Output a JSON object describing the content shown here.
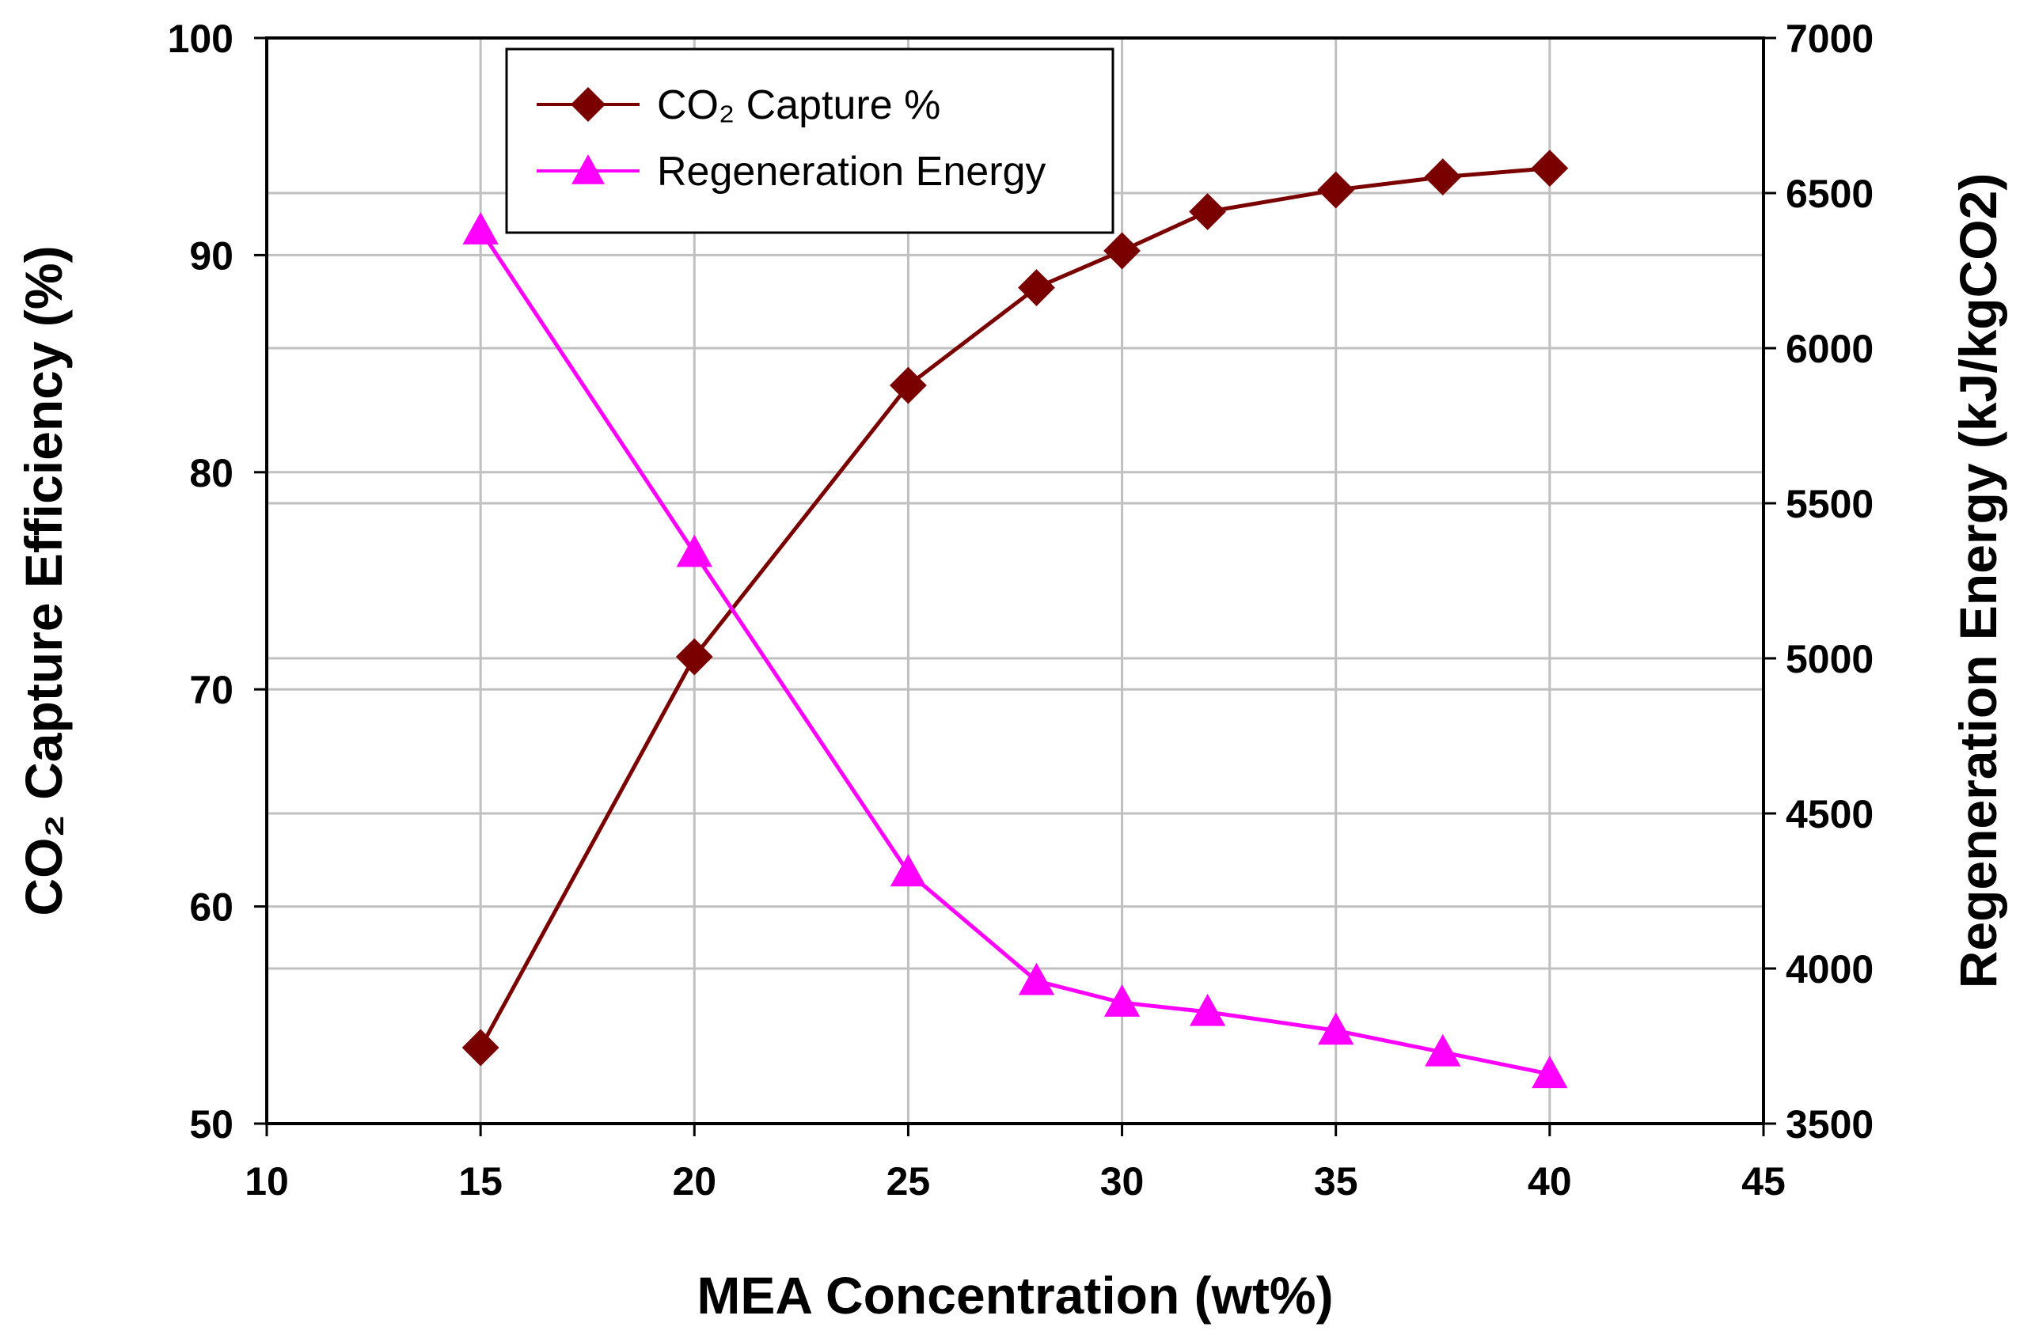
{
  "chart_data": {
    "type": "line",
    "title": "",
    "xlabel": "MEA Concentration (wt%)",
    "ylabel_left": "CO₂ Capture Efficiency (%)",
    "ylabel_right": "Regeneration Energy (kJ/kgCO2)",
    "xlim": [
      10,
      45
    ],
    "ylim_left": [
      50,
      100
    ],
    "ylim_right": [
      3500,
      7000
    ],
    "xticks": [
      10,
      15,
      20,
      25,
      30,
      35,
      40,
      45
    ],
    "yticks_left": [
      50,
      60,
      70,
      80,
      90,
      100
    ],
    "yticks_right": [
      3500,
      4000,
      4500,
      5000,
      5500,
      6000,
      6500,
      7000
    ],
    "grid": true,
    "legend_position": "top-center",
    "series": [
      {
        "name": "CO₂ Capture %",
        "axis": "left",
        "color": "#7a0000",
        "marker": "diamond",
        "x": [
          15,
          20,
          25,
          28,
          30,
          32,
          35,
          37.5,
          40
        ],
        "values": [
          53.5,
          71.5,
          84,
          88.5,
          90.2,
          92,
          93,
          93.6,
          94
        ]
      },
      {
        "name": "Regeneration Energy",
        "axis": "right",
        "color": "#ff00ff",
        "marker": "triangle",
        "x": [
          15,
          20,
          25,
          28,
          30,
          32,
          35,
          37.5,
          40
        ],
        "values": [
          6380,
          5340,
          4310,
          3960,
          3890,
          3860,
          3800,
          3730,
          3660
        ]
      }
    ]
  }
}
